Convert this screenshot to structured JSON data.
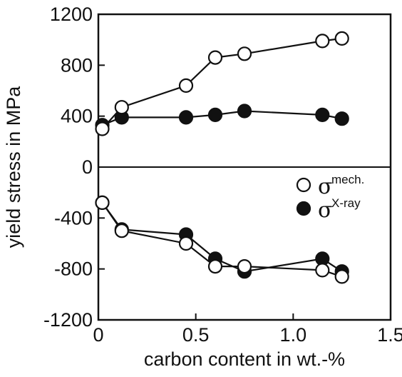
{
  "chart_data": {
    "type": "scatter",
    "title": "",
    "xlabel": "carbon content in wt.-%",
    "ylabel": "yield stress in MPa",
    "xlim": [
      0,
      1.5
    ],
    "ylim": [
      -1200,
      1200
    ],
    "x_ticks": [
      {
        "value": 0,
        "label": "0"
      },
      {
        "value": 0.5,
        "label": "0.5"
      },
      {
        "value": 1.0,
        "label": "1.0"
      },
      {
        "value": 1.5,
        "label": "1.5"
      }
    ],
    "y_ticks": [
      {
        "value": 1200,
        "label": "1200"
      },
      {
        "value": 800,
        "label": "800"
      },
      {
        "value": 400,
        "label": "400"
      },
      {
        "value": 0,
        "label": "0"
      },
      {
        "value": -400,
        "label": "-400"
      },
      {
        "value": -800,
        "label": "-800"
      },
      {
        "value": -1200,
        "label": "-1200"
      }
    ],
    "grid": false,
    "legend_position": "inside right, just below zero line",
    "series": [
      {
        "name": "σ mech.",
        "legend_symbol": "σ",
        "legend_superscript": "mech.",
        "marker": "open-circle",
        "groups": [
          {
            "x": [
              0.02,
              0.12,
              0.45,
              0.6,
              0.75,
              1.15,
              1.25
            ],
            "y": [
              300,
              470,
              640,
              860,
              890,
              990,
              1010
            ]
          },
          {
            "x": [
              0.02,
              0.12,
              0.45,
              0.6,
              0.75,
              1.15,
              1.25
            ],
            "y": [
              -280,
              -500,
              -600,
              -780,
              -780,
              -810,
              -860
            ]
          }
        ]
      },
      {
        "name": "σ X-ray",
        "legend_symbol": "σ",
        "legend_superscript": "X-ray",
        "marker": "filled-circle",
        "groups": [
          {
            "x": [
              0.02,
              0.12,
              0.45,
              0.6,
              0.75,
              1.15,
              1.25
            ],
            "y": [
              330,
              390,
              390,
              410,
              440,
              410,
              380
            ]
          },
          {
            "x": [
              0.02,
              0.12,
              0.45,
              0.6,
              0.75,
              1.15,
              1.25
            ],
            "y": [
              -280,
              -490,
              -530,
              -720,
              -820,
              -720,
              -820
            ]
          }
        ]
      }
    ]
  }
}
